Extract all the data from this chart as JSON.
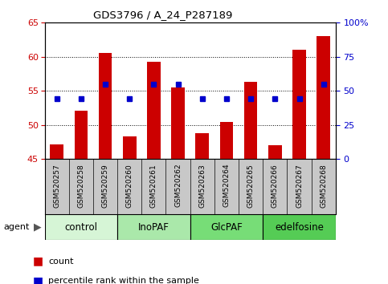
{
  "title": "GDS3796 / A_24_P287189",
  "samples": [
    "GSM520257",
    "GSM520258",
    "GSM520259",
    "GSM520260",
    "GSM520261",
    "GSM520262",
    "GSM520263",
    "GSM520264",
    "GSM520265",
    "GSM520266",
    "GSM520267",
    "GSM520268"
  ],
  "counts": [
    47.2,
    52.1,
    60.6,
    48.3,
    59.3,
    55.5,
    48.8,
    50.5,
    56.3,
    47.0,
    61.0,
    63.0
  ],
  "percentile_ranks": [
    44,
    44,
    55,
    44,
    55,
    55,
    44,
    44,
    44,
    44,
    44,
    55
  ],
  "bar_color": "#cc0000",
  "dot_color": "#0000cc",
  "ylim_left": [
    45,
    65
  ],
  "ylim_right": [
    0,
    100
  ],
  "yticks_left": [
    45,
    50,
    55,
    60,
    65
  ],
  "yticks_right": [
    0,
    25,
    50,
    75,
    100
  ],
  "ytick_labels_right": [
    "0",
    "25",
    "50",
    "75",
    "100%"
  ],
  "groups": [
    {
      "label": "control",
      "start": 0,
      "end": 3,
      "color": "#d6f5d6"
    },
    {
      "label": "InoPAF",
      "start": 3,
      "end": 6,
      "color": "#aae8aa"
    },
    {
      "label": "GlcPAF",
      "start": 6,
      "end": 9,
      "color": "#77dd77"
    },
    {
      "label": "edelfosine",
      "start": 9,
      "end": 12,
      "color": "#55cc55"
    }
  ],
  "xlabel_agent": "agent",
  "legend_count": "count",
  "legend_percentile": "percentile rank within the sample",
  "background_plot": "#ffffff",
  "background_label": "#c8c8c8",
  "grid_color": "#000000",
  "grid_ticks": [
    50,
    55,
    60
  ]
}
